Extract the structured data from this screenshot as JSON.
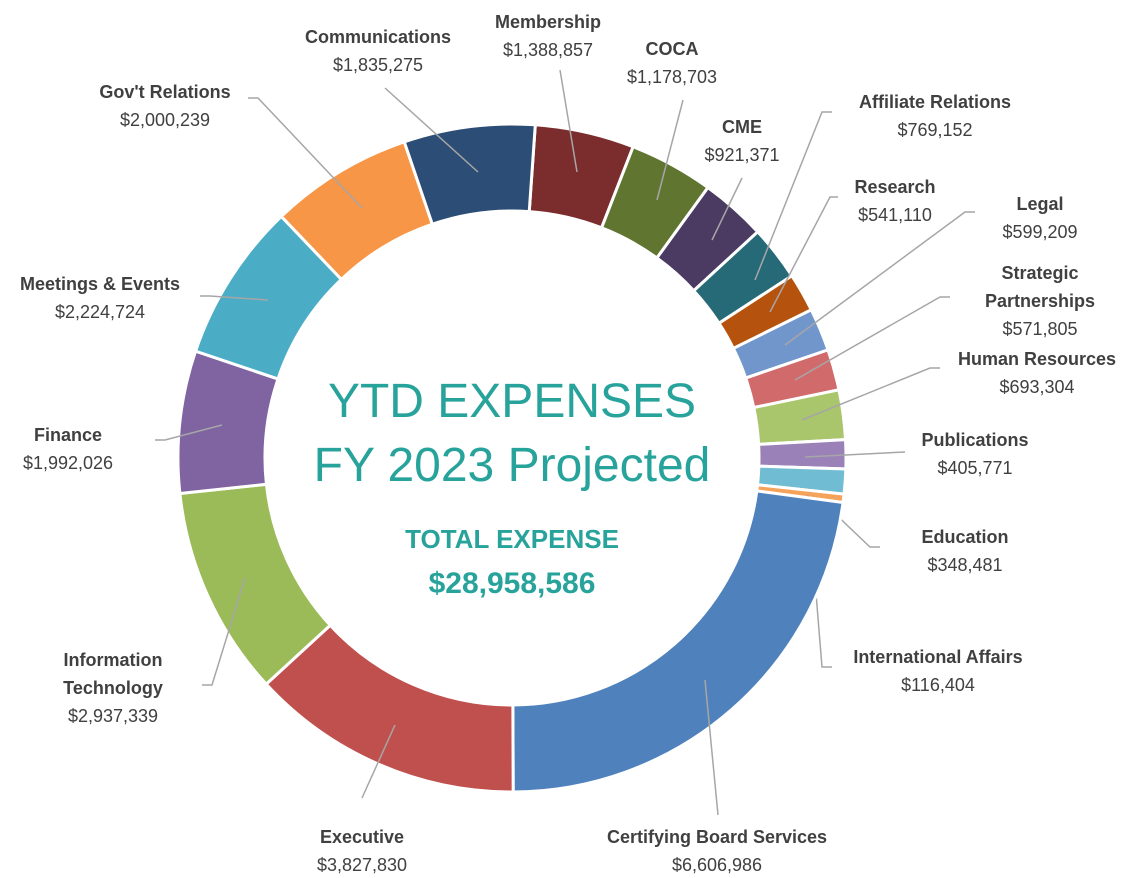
{
  "chart_data": {
    "type": "donut",
    "title": "YTD EXPENSES",
    "subtitle": "FY 2023 Projected",
    "total_label": "TOTAL EXPENSE",
    "total_value": "$28,958,586",
    "categories": [
      "Membership",
      "COCA",
      "CME",
      "Affiliate Relations",
      "Research",
      "Legal",
      "Strategic Partnerships",
      "Human Resources",
      "Publications",
      "Education",
      "International Affairs",
      "Certifying Board Services",
      "Executive",
      "Information Technology",
      "Finance",
      "Meetings & Events",
      "Gov't Relations",
      "Communications"
    ],
    "values": [
      1388857,
      1178703,
      921371,
      769152,
      541110,
      599209,
      571805,
      693304,
      405771,
      348481,
      116404,
      6606986,
      3827830,
      2937339,
      1992026,
      2224724,
      2000239,
      1835275
    ],
    "value_labels": [
      "$1,388,857",
      "$1,178,703",
      "$921,371",
      "$769,152",
      "$541,110",
      "$599,209",
      "$571,805",
      "$693,304",
      "$405,771",
      "$348,481",
      "$116,404",
      "$6,606,986",
      "$3,827,830",
      "$2,937,339",
      "$1,992,026",
      "$2,224,724",
      "$2,000,239",
      "$1,835,275"
    ],
    "colors": [
      "#7b2c2c",
      "#5f7530",
      "#4b3b63",
      "#266a78",
      "#b5520e",
      "#7096cc",
      "#d16b6b",
      "#a9c66d",
      "#9a82b8",
      "#6fbcd3",
      "#f5a25a",
      "#4f81bd",
      "#c0504d",
      "#9bbb59",
      "#8064a2",
      "#4bacc6",
      "#f79646",
      "#2c4d75"
    ]
  }
}
